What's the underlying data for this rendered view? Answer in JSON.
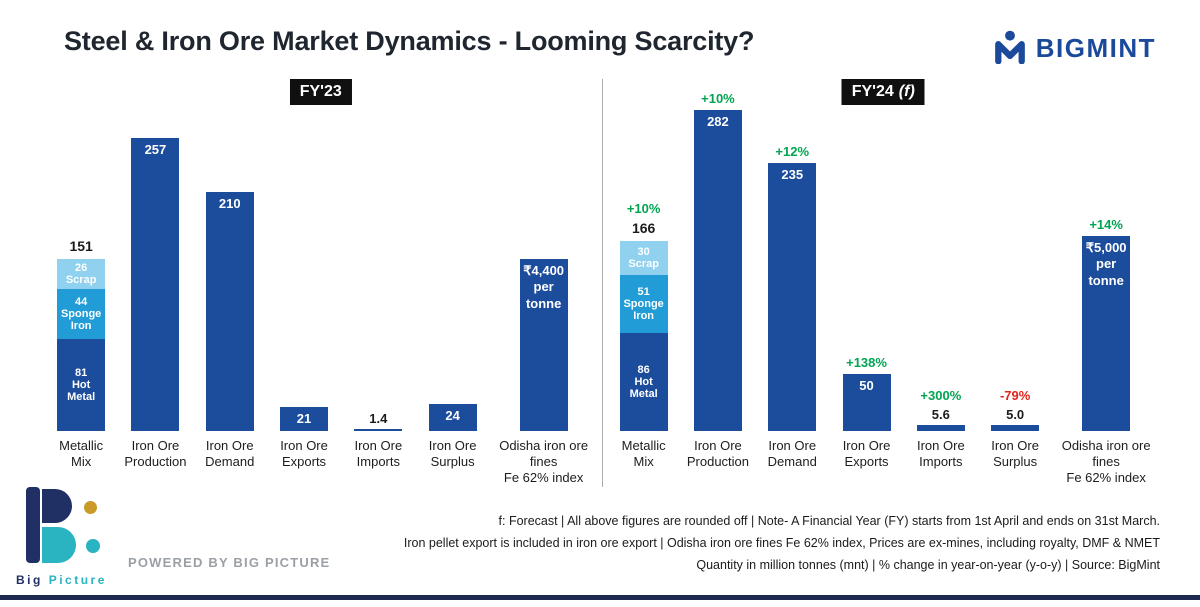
{
  "header": {
    "title": "Steel & Iron Ore Market Dynamics - Looming Scarcity?",
    "brand": "BIGMINT"
  },
  "colors": {
    "bar": "#1c4c9c",
    "sponge": "#219cd7",
    "scrap": "#8fd1ee",
    "positive": "#00a551",
    "negative": "#e2231a",
    "brand_blue": "#1b4a9b",
    "panel_label_bg": "#101010"
  },
  "chart_data": [
    {
      "type": "bar",
      "title": "FY'23",
      "title_suffix": "",
      "unit": "million tonnes (mnt)",
      "categories": [
        "Metallic Mix",
        "Iron Ore Production",
        "Iron Ore Demand",
        "Iron Ore Exports",
        "Iron Ore Imports",
        "Iron Ore Surplus",
        "Odisha iron ore fines Fe 62% index"
      ],
      "bars": [
        {
          "category": "Metallic\nMix",
          "total": "151",
          "stack": [
            {
              "name": "Scrap",
              "value": 26
            },
            {
              "name": "Sponge Iron",
              "value": 44
            },
            {
              "name": "Hot Metal",
              "value": 81
            }
          ]
        },
        {
          "category": "Iron Ore\nProduction",
          "value": 257,
          "label": "257"
        },
        {
          "category": "Iron Ore\nDemand",
          "value": 210,
          "label": "210"
        },
        {
          "category": "Iron Ore\nExports",
          "value": 21,
          "label": "21"
        },
        {
          "category": "Iron Ore\nImports",
          "value": 1.4,
          "label": "1.4"
        },
        {
          "category": "Iron Ore\nSurplus",
          "value": 24,
          "label": "24"
        },
        {
          "category": "Odisha iron ore\nfines\nFe 62% index",
          "scale": "price",
          "value": 4400,
          "label": "₹4,400\nper\ntonne"
        }
      ]
    },
    {
      "type": "bar",
      "title": "FY'24",
      "title_suffix": "(f)",
      "unit": "million tonnes (mnt)",
      "categories": [
        "Metallic Mix",
        "Iron Ore Production",
        "Iron Ore Demand",
        "Iron Ore Exports",
        "Iron Ore Imports",
        "Iron Ore Surplus",
        "Odisha iron ore fines Fe 62% index"
      ],
      "bars": [
        {
          "category": "Metallic\nMix",
          "total": "166",
          "change": "+10%",
          "stack": [
            {
              "name": "Scrap",
              "value": 30
            },
            {
              "name": "Sponge Iron",
              "value": 51
            },
            {
              "name": "Hot Metal",
              "value": 86
            }
          ]
        },
        {
          "category": "Iron Ore\nProduction",
          "value": 282,
          "label": "282",
          "change": "+10%"
        },
        {
          "category": "Iron Ore\nDemand",
          "value": 235,
          "label": "235",
          "change": "+12%"
        },
        {
          "category": "Iron Ore\nExports",
          "value": 50,
          "label": "50",
          "change": "+138%"
        },
        {
          "category": "Iron Ore\nImports",
          "value": 5.6,
          "label": "5.6",
          "change": "+300%"
        },
        {
          "category": "Iron Ore\nSurplus",
          "value": 5,
          "label": "5.0",
          "change": "-79%"
        },
        {
          "category": "Odisha iron ore\nfines\nFe 62% index",
          "scale": "price",
          "value": 5000,
          "label": "₹5,000\nper\ntonne",
          "change": "+14%"
        }
      ]
    }
  ],
  "footer": {
    "brand_word1": "Big",
    "brand_word2": "Picture",
    "powered_by": "POWERED BY BIG PICTURE",
    "notes": [
      "f: Forecast | All above figures are rounded off | Note- A Financial Year (FY) starts from 1st April and ends on 31st March.",
      "Iron pellet export is included in iron ore export | Odisha iron ore fines Fe 62% index, Prices are ex-mines, including royalty, DMF & NMET",
      "Quantity in million tonnes (mnt) | % change in year-on-year (y-o-y) | Source: BigMint"
    ]
  }
}
